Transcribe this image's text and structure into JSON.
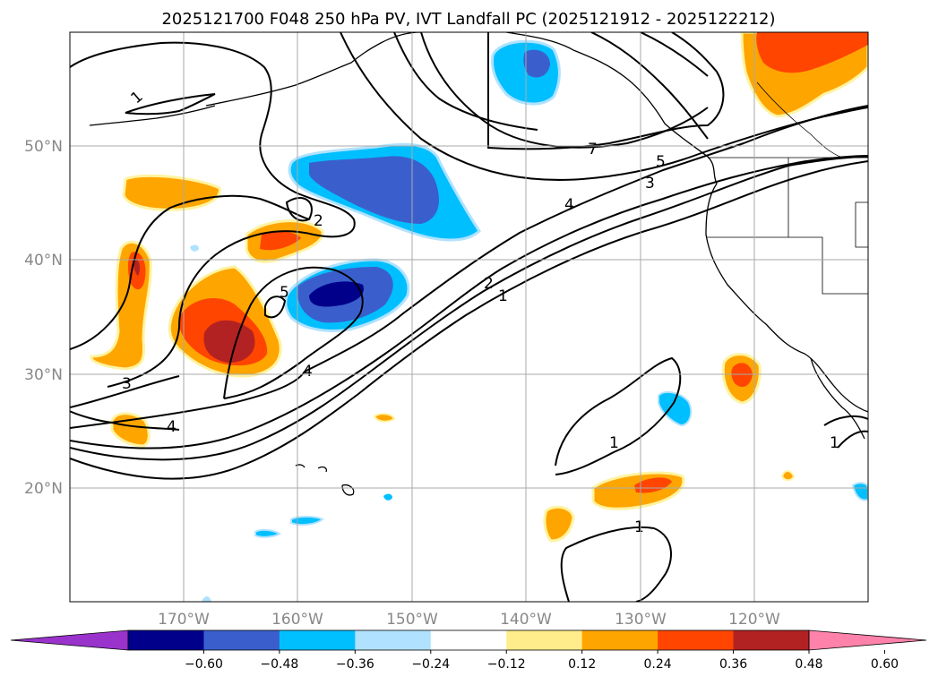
{
  "title": "2025121700 F048 250 hPa PV, IVT Landfall PC (2025121912 - 2025122212)",
  "map": {
    "lat_labels": [
      "50°N",
      "40°N",
      "30°N",
      "20°N"
    ],
    "lon_labels": [
      "170°W",
      "160°W",
      "150°W",
      "140°W",
      "130°W",
      "120°W"
    ],
    "pv_contour_labels": [
      "1",
      "2",
      "5",
      "4",
      "3",
      "4",
      "7",
      "5",
      "3",
      "4",
      "2",
      "1",
      "1",
      "1",
      "1"
    ]
  },
  "colorbar": {
    "colors": [
      "#9933cc",
      "#00008b",
      "#3a5fcd",
      "#00bfff",
      "#b0e2ff",
      "#ffffff",
      "#ffec8b",
      "#ffa500",
      "#ff4500",
      "#b22222",
      "#ff82ab"
    ],
    "tick_labels": [
      "−0.60",
      "−0.48",
      "−0.36",
      "−0.24",
      "−0.12",
      "0.12",
      "0.24",
      "0.36",
      "0.48",
      "0.60"
    ]
  }
}
